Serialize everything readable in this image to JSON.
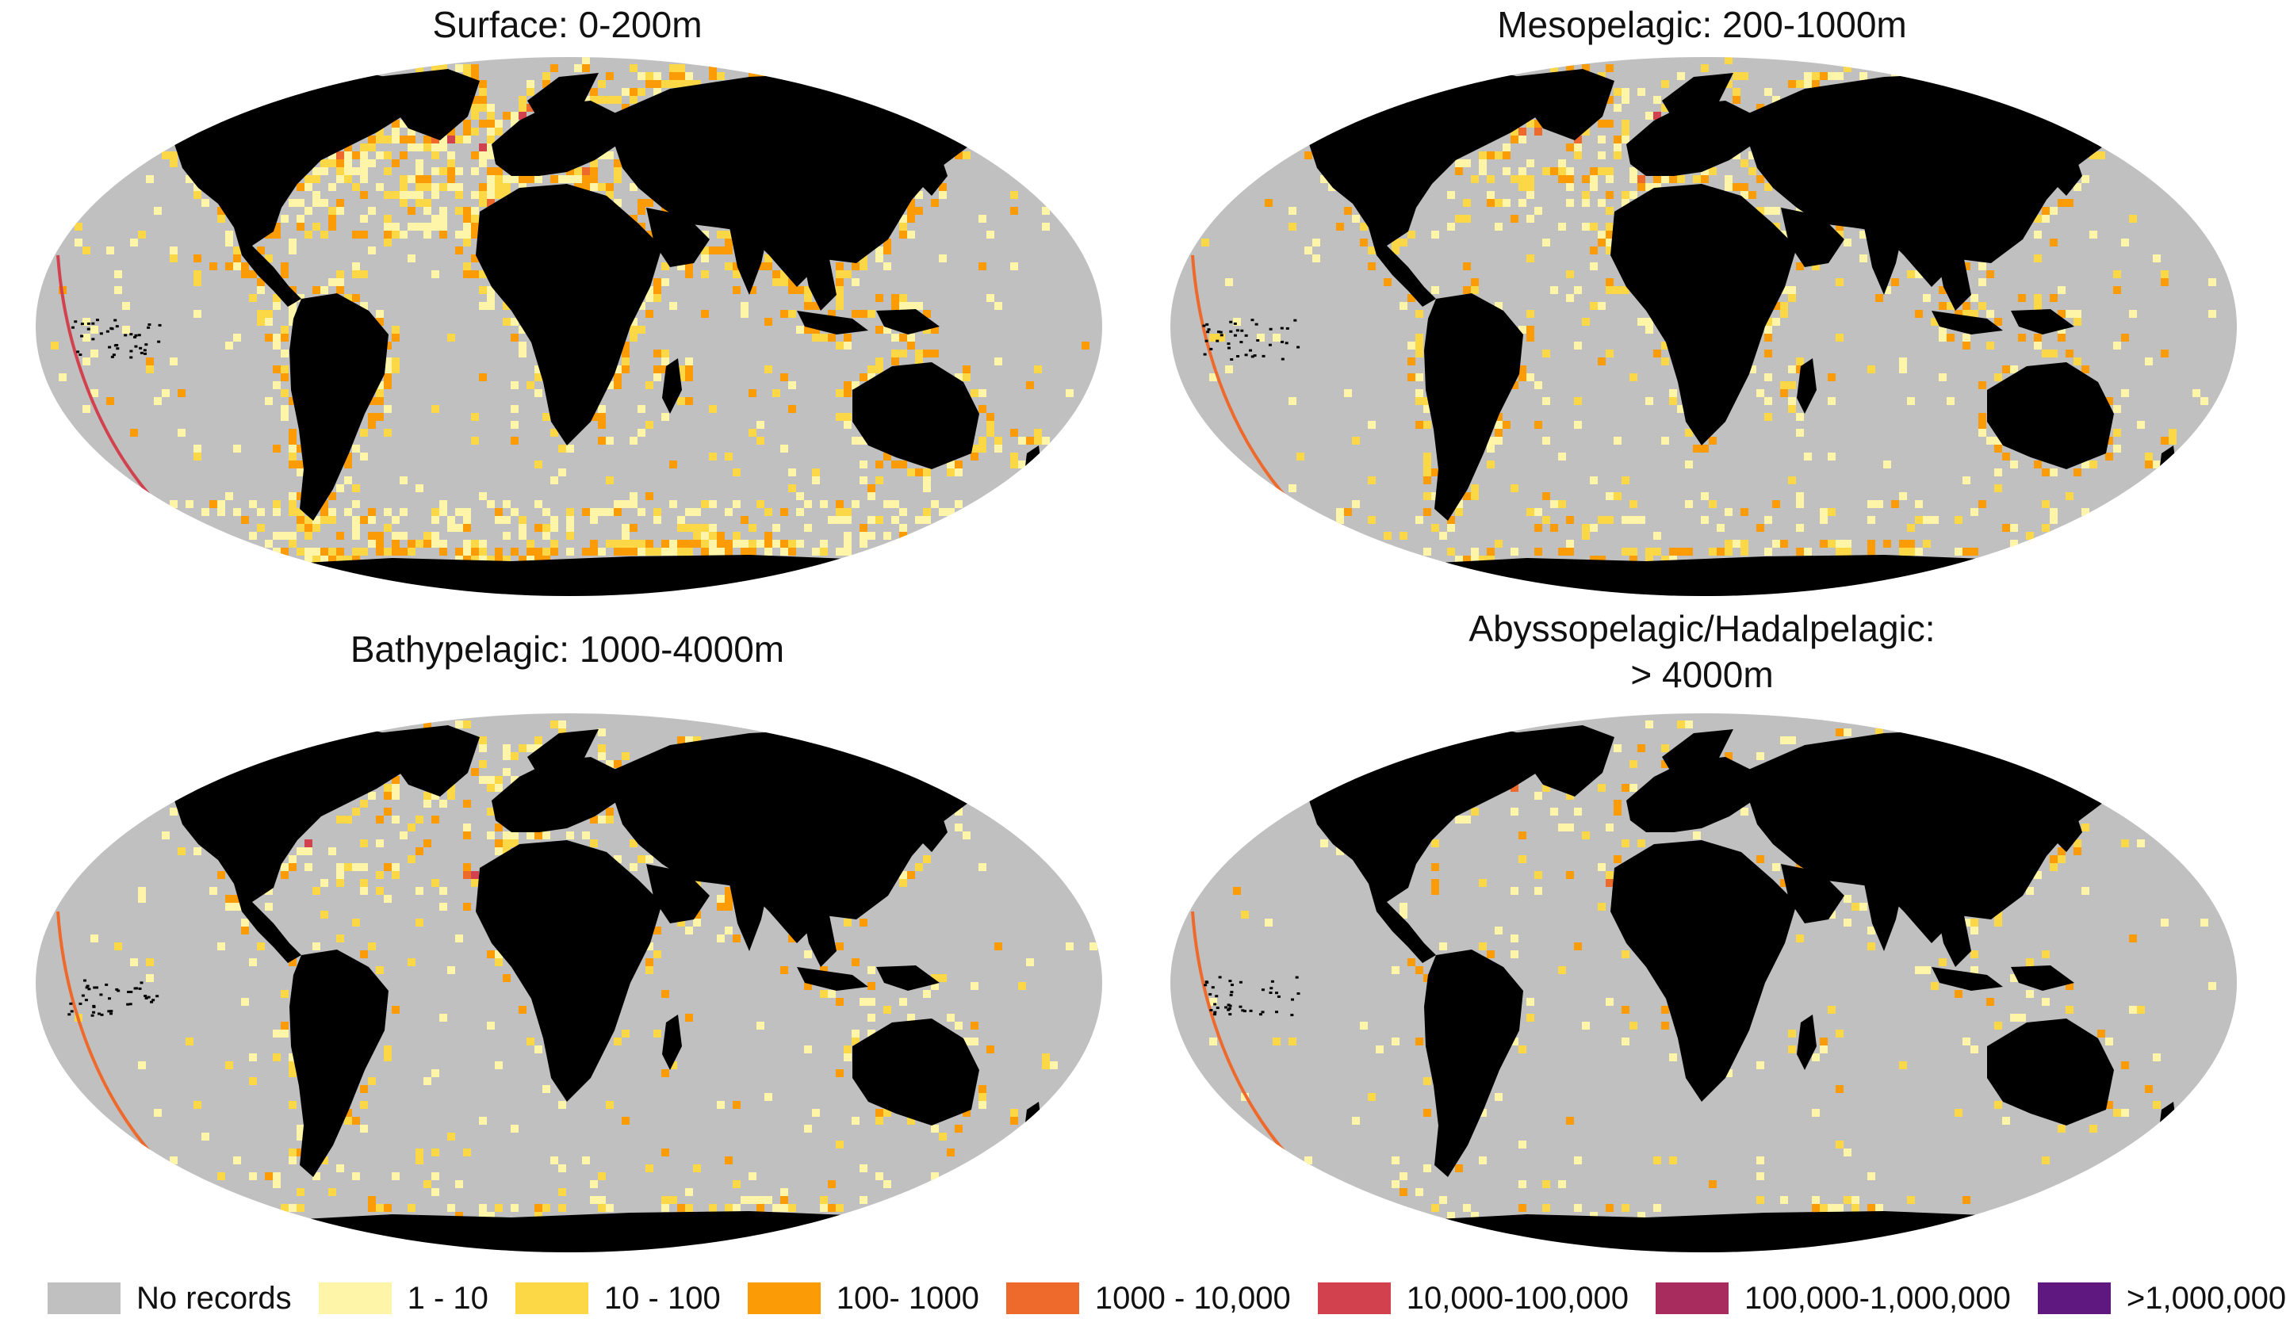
{
  "colors": {
    "no_records": "#c0c0c0",
    "land": "#000000",
    "c1": "#fff5a8",
    "c2": "#fcd847",
    "c3": "#fb9c06",
    "c4": "#ee6a2c",
    "c5": "#d2424e",
    "c6": "#a92c5f",
    "c7": "#5f187f"
  },
  "panels": [
    {
      "title": "Surface: 0-200m",
      "title_lines": [
        "Surface: 0-200m"
      ],
      "density": 0.9
    },
    {
      "title": "Mesopelagic: 200-1000m",
      "title_lines": [
        "Mesopelagic: 200-1000m"
      ],
      "density": 0.6
    },
    {
      "title": "Bathypelagic: 1000-4000m",
      "title_lines": [
        "Bathypelagic: 1000-4000m"
      ],
      "density": 0.4
    },
    {
      "title": "Abyssopelagic/Hadalpelagic: > 4000m",
      "title_lines": [
        "Abyssopelagic/Hadalpelagic:",
        "> 4000m"
      ],
      "density": 0.22
    }
  ],
  "legend": [
    {
      "label": "No records",
      "color": "#c0c0c0"
    },
    {
      "label": "1 - 10",
      "color": "#fff5a8"
    },
    {
      "label": "10 - 100",
      "color": "#fcd847"
    },
    {
      "label": "100- 1000",
      "color": "#fb9c06"
    },
    {
      "label": "1000 - 10,000",
      "color": "#ee6a2c"
    },
    {
      "label": "10,000-100,000",
      "color": "#d2424e"
    },
    {
      "label": "100,000-1,000,000",
      "color": "#a92c5f"
    },
    {
      "label": ">1,000,000",
      "color": "#5f187f"
    }
  ]
}
